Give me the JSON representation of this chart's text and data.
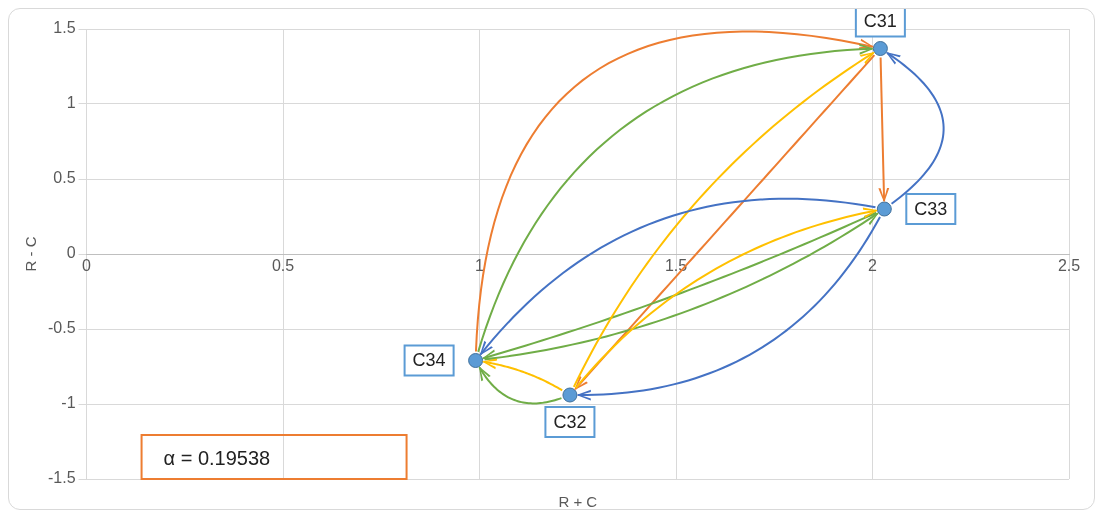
{
  "chart_data": {
    "type": "scatter",
    "xlabel": "R + C",
    "ylabel": "R - C",
    "x": [
      2.02,
      1.23,
      2.03,
      0.99
    ],
    "values": [
      1.37,
      -0.94,
      0.3,
      -0.71
    ],
    "value_labels": [
      "C31",
      "C32",
      "C33",
      "C34"
    ],
    "color": "#5b9bd5",
    "marker": "circle",
    "xlim": [
      0,
      2.5
    ],
    "xticks": [
      0,
      0.5,
      1,
      1.5,
      2,
      2.5
    ],
    "ylim": [
      -1.5,
      1.5
    ],
    "yticks": [
      -1.5,
      -1,
      -0.5,
      0,
      0.5,
      1,
      1.5
    ],
    "grid": true,
    "legend": false,
    "annotations": [
      "α = 0.19538"
    ]
  }
}
